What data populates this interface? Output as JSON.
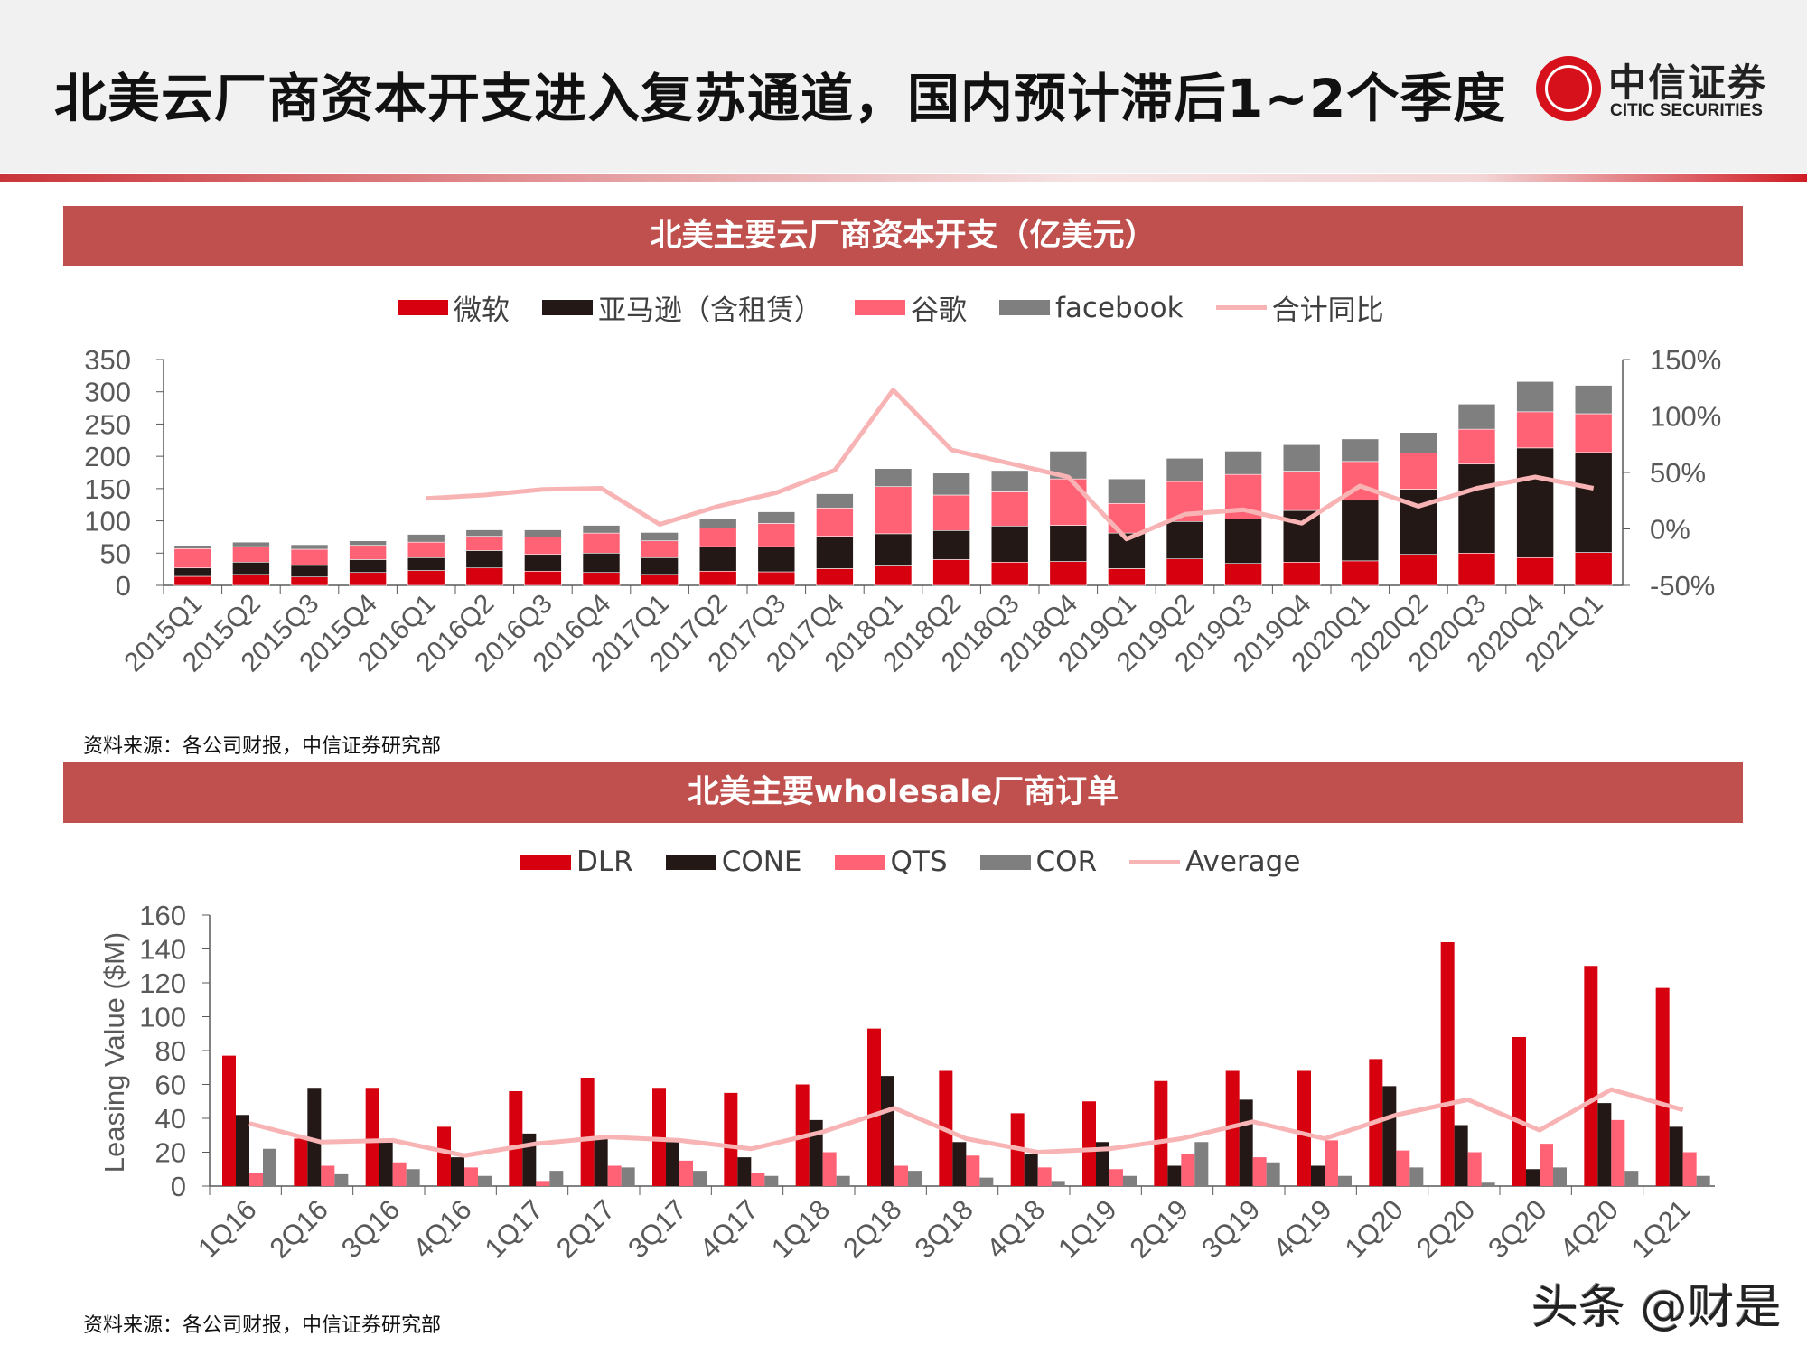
{
  "header": {
    "title": "北美云厂商资本开支进入复苏通道，国内预计滞后1~2个季度",
    "logo_cn": "中信证券",
    "logo_en": "CITIC SECURITIES"
  },
  "colors": {
    "red": "#d7000f",
    "black": "#231815",
    "pink": "#ff6275",
    "gray": "#7f7f7f",
    "line": "#f8b4b4",
    "band": "#c0504d"
  },
  "watermark": "头条 @财是",
  "chart_data": [
    {
      "type": "bar",
      "stacked": true,
      "title": "北美主要云厂商资本开支（亿美元）",
      "legend_position": "top",
      "categories": [
        "2015Q1",
        "2015Q2",
        "2015Q3",
        "2015Q4",
        "2016Q1",
        "2016Q2",
        "2016Q3",
        "2016Q4",
        "2017Q1",
        "2017Q2",
        "2017Q3",
        "2017Q4",
        "2018Q1",
        "2018Q2",
        "2018Q3",
        "2018Q4",
        "2019Q1",
        "2019Q2",
        "2019Q3",
        "2019Q4",
        "2020Q1",
        "2020Q2",
        "2020Q3",
        "2020Q4",
        "2021Q1"
      ],
      "series": [
        {
          "name": "微软",
          "values": [
            14,
            17,
            13,
            20,
            23,
            27,
            22,
            20,
            17,
            22,
            21,
            26,
            30,
            40,
            36,
            37,
            26,
            41,
            34,
            36,
            38,
            48,
            50,
            43,
            51
          ]
        },
        {
          "name": "亚马逊（含租赁）",
          "values": [
            13,
            19,
            18,
            20,
            20,
            27,
            26,
            30,
            26,
            38,
            39,
            50,
            50,
            45,
            56,
            56,
            55,
            58,
            69,
            80,
            94,
            101,
            138,
            170,
            155
          ]
        },
        {
          "name": "谷歌",
          "values": [
            30,
            24,
            25,
            22,
            24,
            22,
            27,
            31,
            26,
            29,
            36,
            44,
            73,
            55,
            53,
            72,
            46,
            62,
            69,
            61,
            60,
            56,
            54,
            56,
            60
          ]
        },
        {
          "name": "facebook",
          "values": [
            5,
            7,
            7,
            7,
            12,
            10,
            11,
            12,
            13,
            14,
            18,
            22,
            28,
            34,
            33,
            43,
            38,
            36,
            36,
            41,
            35,
            32,
            39,
            47,
            44
          ]
        },
        {
          "name": "合计同比",
          "type": "line",
          "axis": "right",
          "values": [
            null,
            null,
            null,
            null,
            27,
            30,
            35,
            36,
            4,
            20,
            32,
            52,
            123,
            70,
            58,
            46,
            -9,
            13,
            17,
            5,
            38,
            20,
            36,
            46,
            36
          ]
        }
      ],
      "y_left": {
        "range": [
          0,
          350
        ],
        "ticks": [
          "0",
          "50",
          "100",
          "150",
          "200",
          "250",
          "300",
          "350"
        ]
      },
      "y_right": {
        "range": [
          -50,
          150
        ],
        "ticks": [
          "-50%",
          "0%",
          "50%",
          "100%",
          "150%"
        ]
      },
      "source": "资料来源：各公司财报，中信证券研究部"
    },
    {
      "type": "bar",
      "title": "北美主要wholesale厂商订单",
      "legend_position": "top",
      "ylabel": "Leasing Value ($M)",
      "categories": [
        "1Q16",
        "2Q16",
        "3Q16",
        "4Q16",
        "1Q17",
        "2Q17",
        "3Q17",
        "4Q17",
        "1Q18",
        "2Q18",
        "3Q18",
        "4Q18",
        "1Q19",
        "2Q19",
        "3Q19",
        "4Q19",
        "1Q20",
        "2Q20",
        "3Q20",
        "4Q20",
        "1Q21"
      ],
      "series": [
        {
          "name": "DLR",
          "values": [
            77,
            28,
            58,
            35,
            56,
            64,
            58,
            55,
            60,
            93,
            68,
            43,
            50,
            62,
            68,
            68,
            75,
            144,
            88,
            130,
            117
          ]
        },
        {
          "name": "CONE",
          "values": [
            42,
            58,
            26,
            17,
            31,
            28,
            26,
            17,
            39,
            65,
            26,
            19,
            26,
            12,
            51,
            12,
            59,
            36,
            10,
            49,
            35
          ]
        },
        {
          "name": "QTS",
          "values": [
            8,
            12,
            14,
            11,
            3,
            12,
            15,
            8,
            20,
            12,
            18,
            11,
            10,
            19,
            17,
            27,
            21,
            20,
            25,
            39,
            20
          ]
        },
        {
          "name": "COR",
          "values": [
            22,
            7,
            10,
            6,
            9,
            11,
            9,
            6,
            6,
            9,
            5,
            3,
            6,
            26,
            14,
            6,
            11,
            2,
            11,
            9,
            6
          ]
        },
        {
          "name": "Average",
          "type": "line",
          "values": [
            37,
            26,
            27,
            18,
            25,
            29,
            27,
            22,
            32,
            46,
            28,
            20,
            22,
            28,
            38,
            28,
            42,
            51,
            33,
            57,
            45
          ]
        }
      ],
      "y": {
        "range": [
          0,
          160
        ],
        "ticks": [
          "0",
          "20",
          "40",
          "60",
          "80",
          "100",
          "120",
          "140",
          "160"
        ]
      },
      "source": "资料来源：各公司财报，中信证券研究部"
    }
  ]
}
